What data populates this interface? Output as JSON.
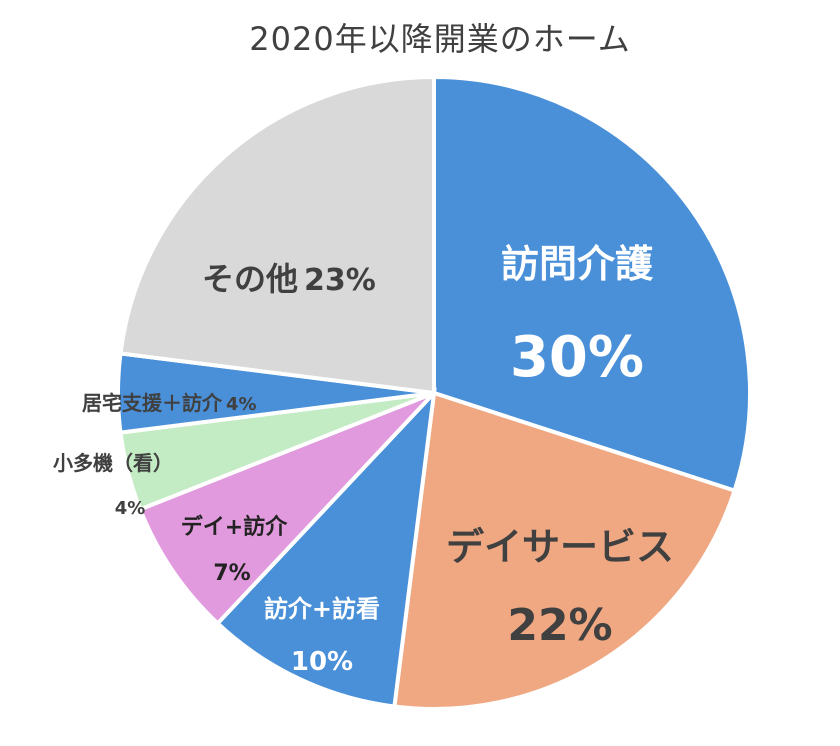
{
  "chart_data": {
    "type": "pie",
    "title": "2020年以降開業のホーム",
    "slices": [
      {
        "label": "訪問介護",
        "value": 30,
        "pct": "30%",
        "color": "#4a90d9"
      },
      {
        "label": "デイサービス",
        "value": 22,
        "pct": "22%",
        "color": "#f0a882"
      },
      {
        "label": "訪介+訪看",
        "value": 10,
        "pct": "10%",
        "color": "#4a90d9"
      },
      {
        "label": "デイ+訪介",
        "value": 7,
        "pct": "7%",
        "color": "#e09add"
      },
      {
        "label": "小多機（看）",
        "value": 4,
        "pct": "4%",
        "color": "#c4ecc4"
      },
      {
        "label": "居宅支援＋訪介",
        "value": 4,
        "pct": "4%",
        "color": "#4a90d9"
      },
      {
        "label": "その他",
        "value": 23,
        "pct": "23%",
        "color": "#d9d9d9"
      }
    ]
  }
}
